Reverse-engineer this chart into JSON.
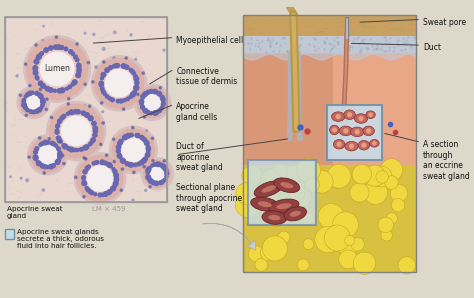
{
  "bg_color": "#e8e0d0",
  "labels": {
    "myoepithelial_cell": "Myoepithelial cell",
    "connective_tissue": "Connective\ntissue of dermis",
    "apocrine_gland_cells": "Apocrine\ngland cells",
    "lumen": "Lumen",
    "apocrine_sweat_gland": "Apocrine sweat\ngland",
    "lm": "LM × 459",
    "duct_of_apocrine": "Duct of\napocrine\nsweat gland",
    "sectional_plane": "Sectional plane\nthrough apocrine\nsweat gland",
    "sweat_pore": "Sweat pore",
    "duct": "Duct",
    "a_section": "A section\nthrough\nan eccrine\nsweat gland",
    "footnote": "Apocrine sweat glands\nsecrete a thick, odorous\nfluid into hair follicles."
  },
  "colors": {
    "bg": "#ddd8ca",
    "micro_bg": "#e8d8d0",
    "micro_border": "#aaaaaa",
    "label_line": "#444444",
    "text_color": "#111111",
    "footnote_box": "#8ab0cc",
    "skin_top": "#c8a060",
    "epidermis_dotted": "#c8ccd8",
    "dermis": "#e8b090",
    "dermis_left": "#d09080",
    "hypodermis": "#e8c840",
    "fat_fill": "#f0d840",
    "fat_edge": "#c8a820",
    "hair_shaft": "#c8a060",
    "hair_inner": "#b89050",
    "duct_tube": "#b87060",
    "gland_body": "#a05050",
    "gland_dark": "#804040",
    "eccrine_box_bg": "#c8dce8",
    "eccrine_box_edge": "#7090a8",
    "eccrine_dot": "#c06060",
    "eccrine_dot2": "#a04040",
    "blue_dot": "#4060c0",
    "red_dot": "#c04040",
    "apo_box_bg": "#c8dce8",
    "apo_box_edge": "#7090a8",
    "arrow_fill": "#d0d0d0",
    "tubule_outer": "#e0c0c0",
    "tubule_ring": "#c8a0a0",
    "tubule_lumen": "#f0e8e8",
    "tubule_nucleus": "#7070b0",
    "connective_bg": "#e8d0d0"
  },
  "figsize": [
    4.74,
    2.98
  ],
  "dpi": 100
}
